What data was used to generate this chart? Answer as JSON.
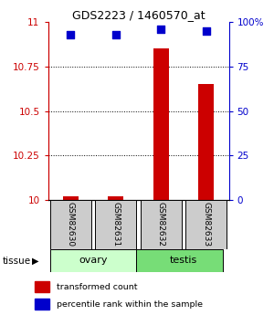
{
  "title": "GDS2223 / 1460570_at",
  "samples": [
    "GSM82630",
    "GSM82631",
    "GSM82632",
    "GSM82633"
  ],
  "transformed_counts": [
    10.02,
    10.02,
    10.85,
    10.65
  ],
  "percentile_ranks": [
    93,
    93,
    96,
    95
  ],
  "ylim_left": [
    10,
    11
  ],
  "ylim_right": [
    0,
    100
  ],
  "yticks_left": [
    10,
    10.25,
    10.5,
    10.75,
    11
  ],
  "yticks_right": [
    0,
    25,
    50,
    75,
    100
  ],
  "bar_color": "#cc0000",
  "dot_color": "#0000cc",
  "tissue_labels": [
    "ovary",
    "testis"
  ],
  "tissue_colors": [
    "#ccffcc",
    "#77dd77"
  ],
  "sample_box_color": "#cccccc",
  "left_axis_color": "#cc0000",
  "right_axis_color": "#0000cc",
  "dot_size": 28,
  "bar_width": 0.35
}
